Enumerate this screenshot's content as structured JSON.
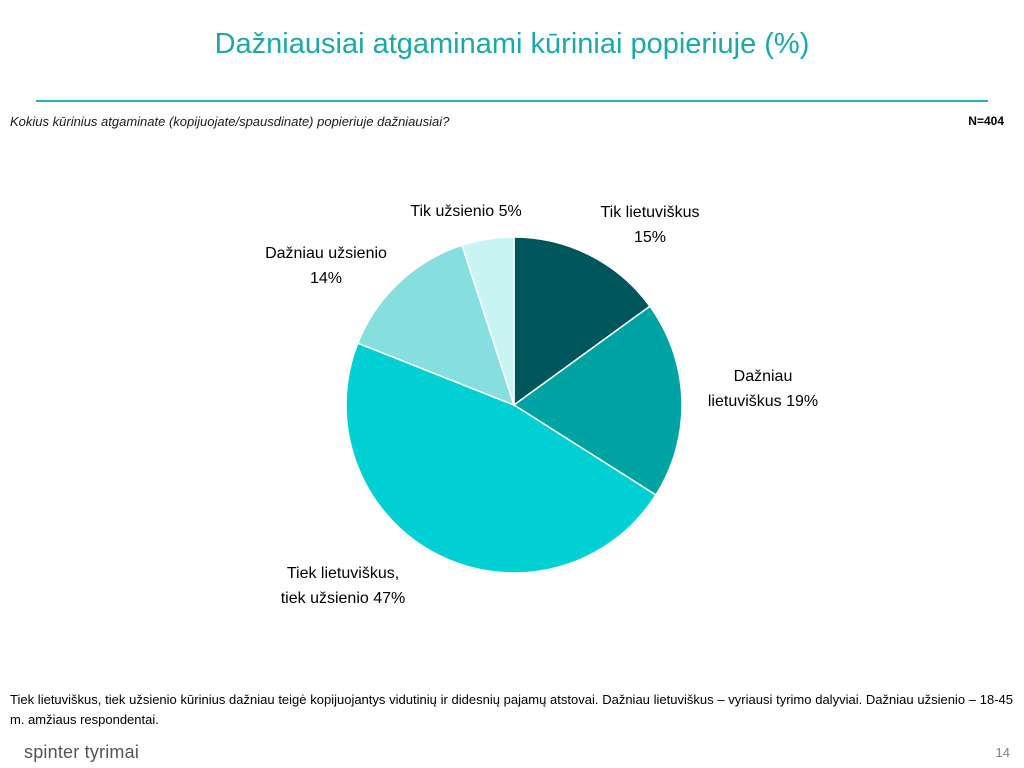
{
  "slide": {
    "title": "Dažniausiai atgaminami kūriniai popieriuje (%)",
    "question": "Kokius kūrinius atgaminate (kopijuojate/spausdinate) popieriuje dažniausiai?",
    "sample_size": "N=404",
    "footnote": "Tiek lietuviškus, tiek užsienio kūrinius dažniau teigė kopijuojantys vidutinių ir didesnių pajamų atstovai. Dažniau lietuviškus – vyriausi tyrimo dalyviai. Dažniau užsienio – 18-45 m. amžiaus respondentai.",
    "logo_text": "spinter tyrimai",
    "page_number": "14"
  },
  "colors": {
    "title": "#1aa9a9",
    "rule": "#27b3b3"
  },
  "chart_data": {
    "type": "pie",
    "title": "",
    "legend": "none",
    "slices": [
      {
        "label_lines": [
          "Tik lietuviškus",
          "15%"
        ],
        "value": 15,
        "color": "#00575b"
      },
      {
        "label_lines": [
          "Dažniau",
          "lietuviškus 19%"
        ],
        "value": 19,
        "color": "#00a3a3"
      },
      {
        "label_lines": [
          "Tiek lietuviškus,",
          "tiek užsienio 47%"
        ],
        "value": 47,
        "color": "#00d0d4"
      },
      {
        "label_lines": [
          "Dažniau užsienio",
          "14%"
        ],
        "value": 14,
        "color": "#86dede"
      },
      {
        "label_lines": [
          "Tik užsienio 5%"
        ],
        "value": 5,
        "color": "#c8f4f4"
      }
    ]
  }
}
